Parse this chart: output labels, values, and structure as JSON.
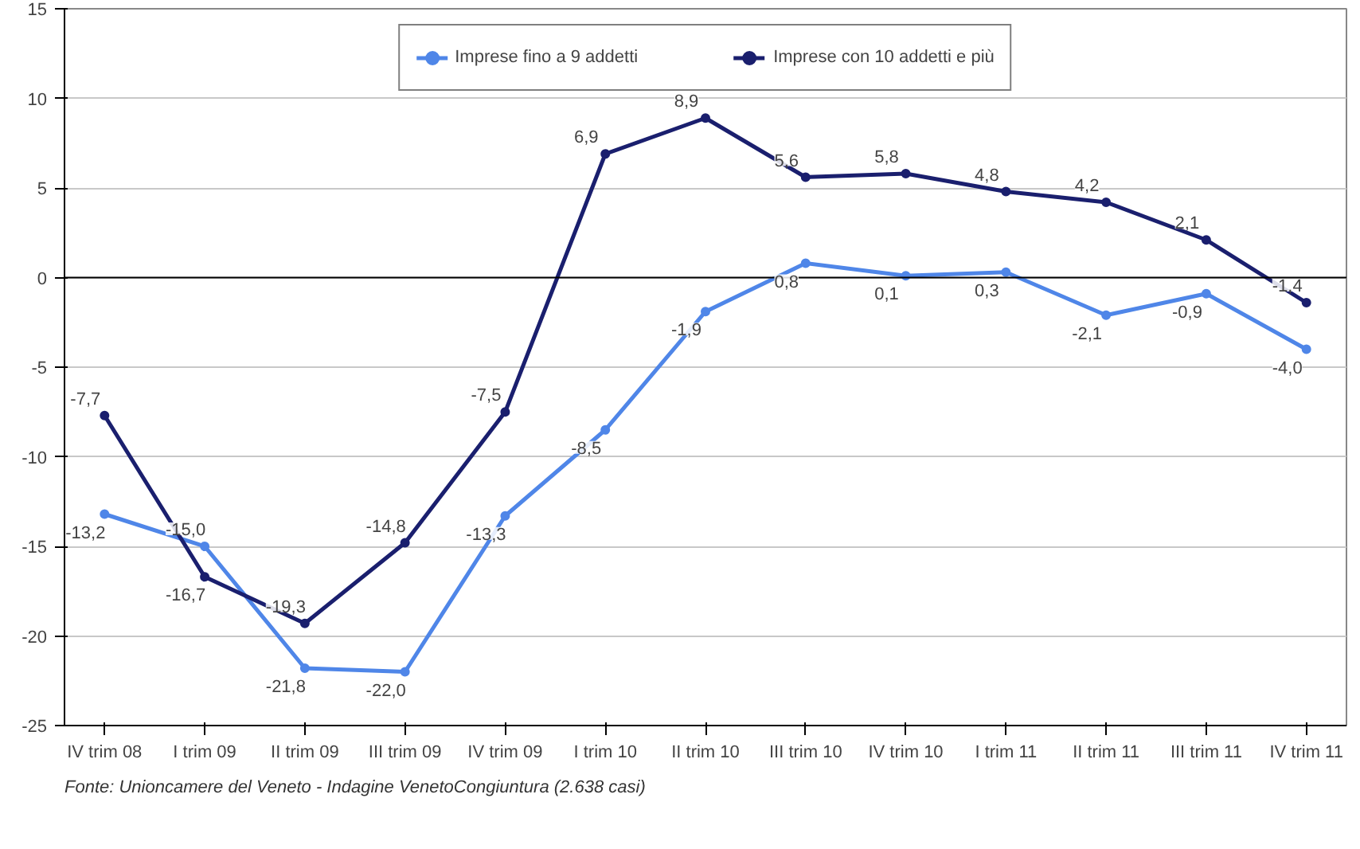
{
  "chart_data": {
    "type": "line",
    "categories": [
      "IV trim 08",
      "I trim 09",
      "II trim 09",
      "III trim 09",
      "IV trim 09",
      "I trim 10",
      "II trim 10",
      "III trim 10",
      "IV trim 10",
      "I trim 11",
      "II trim 11",
      "III trim 11",
      "IV trim 11"
    ],
    "series": [
      {
        "name": "Imprese fino a 9 addetti",
        "color": "#4f86e8",
        "values": [
          -13.2,
          -15.0,
          -21.8,
          -22.0,
          -13.3,
          -8.5,
          -1.9,
          0.8,
          0.1,
          0.3,
          -2.1,
          -0.9,
          -4.0
        ],
        "value_labels": [
          "-13,2",
          "-15,0",
          "-21,8",
          "-22,0",
          "-13,3",
          "-8,5",
          "-1,9",
          "0,8",
          "0,1",
          "0,3",
          "-2,1",
          "-0,9",
          "-4,0"
        ]
      },
      {
        "name": "Imprese con 10 addetti e più",
        "color": "#1a1f6e",
        "values": [
          -7.7,
          -16.7,
          -19.3,
          -14.8,
          -7.5,
          6.9,
          8.9,
          5.6,
          5.8,
          4.8,
          4.2,
          2.1,
          -1.4
        ],
        "value_labels": [
          "-7,7",
          "-16,7",
          "-19,3",
          "-14,8",
          "-7,5",
          "6,9",
          "8,9",
          "5,6",
          "5,8",
          "4,8",
          "4,2",
          "2,1",
          "-1,4"
        ]
      }
    ],
    "ylim": [
      -25,
      15
    ],
    "yticks": [
      -25,
      -20,
      -15,
      -10,
      -5,
      0,
      5,
      10,
      15
    ],
    "grid": "y",
    "legend": "top",
    "marker": "circle",
    "line_style": "solid",
    "annotations": [
      "Fonte: Unioncamere del Veneto - Indagine VenetoCongiuntura (2.638 casi)"
    ]
  }
}
